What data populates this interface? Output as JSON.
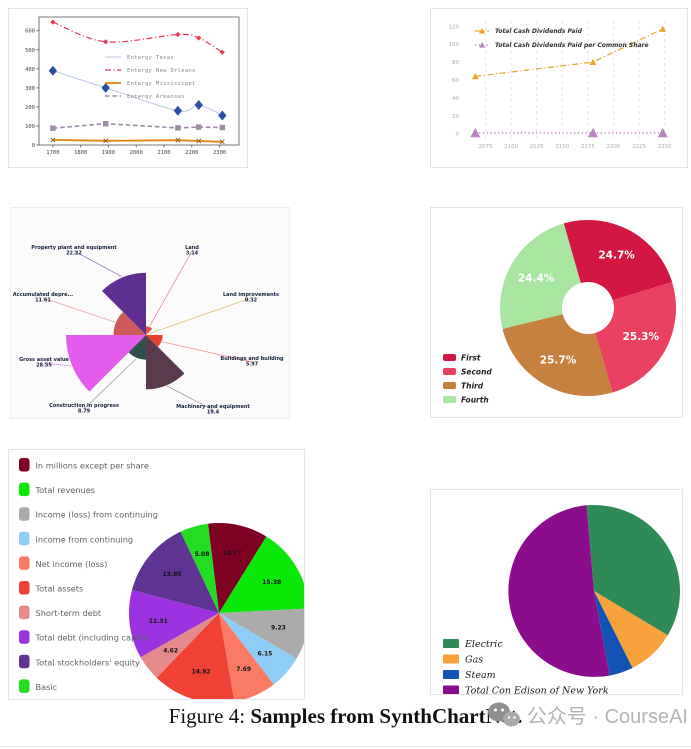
{
  "caption": {
    "prefix": "Figure 4: ",
    "bold": "Samples from SynthChartNet."
  },
  "watermark": {
    "icon": "wechat-icon",
    "text": "公众号 · CourseAI"
  },
  "chart_data": [
    {
      "type": "line",
      "x": [
        1700,
        1890,
        2150,
        2225,
        2310
      ],
      "series": [
        {
          "name": "Entergy Texas",
          "values": [
            390,
            300,
            180,
            210,
            155
          ],
          "color": "#b9c7e6",
          "marker": "diamond",
          "marker_color": "#2d4fa2",
          "style": "solid",
          "smooth": true,
          "width": 1
        },
        {
          "name": "Entergy New Orleans",
          "values": [
            645,
            542,
            580,
            562,
            487
          ],
          "color": "#e8394e",
          "marker": "diamond-small",
          "marker_color": "#e8394e",
          "style": "dashdot",
          "smooth": true,
          "width": 1.2
        },
        {
          "name": "Entergy Mississippi",
          "values": [
            27,
            22,
            25,
            21,
            17
          ],
          "color": "#e2830d",
          "marker": "cross",
          "marker_color": "#8a5a20",
          "style": "solid",
          "smooth": false,
          "width": 1.8
        },
        {
          "name": "Entergy Arkansas",
          "values": [
            88,
            112,
            90,
            94,
            92
          ],
          "color": "#9e8ba4",
          "marker": "square",
          "marker_color": "#9e8ba4",
          "style": "dashed",
          "smooth": false,
          "width": 1.6
        }
      ],
      "xticks": [
        1700,
        1800,
        1900,
        2000,
        2100,
        2200,
        2300
      ],
      "yticks": [
        0,
        100,
        200,
        300,
        400,
        500,
        600
      ],
      "xlim": [
        1650,
        2370
      ],
      "ylim": [
        0,
        672
      ],
      "legend_position": "center-right",
      "grid": "none"
    },
    {
      "type": "line",
      "x": [
        2065,
        2180,
        2248
      ],
      "series": [
        {
          "name": "Total Cash Dividends Paid",
          "values": [
            64,
            80,
            117
          ],
          "color": "#e9a62a",
          "marker": "triangle",
          "marker_color": "#e9a62a",
          "style": "dashdot",
          "smooth": false,
          "width": 1.2,
          "marker_size": 3.4
        },
        {
          "name": "Total Cash Dividends Paid per Common Share",
          "values": [
            0.8,
            0.8,
            0.8
          ],
          "color": "#c77fc9",
          "marker": "triangle",
          "marker_color": "#b784bd",
          "style": "dotted",
          "smooth": false,
          "width": 1.5,
          "marker_size": 5
        }
      ],
      "xticks": [
        2075,
        2100,
        2125,
        2150,
        2175,
        2200,
        2225,
        2250
      ],
      "yticks": [
        0,
        20,
        40,
        60,
        80,
        100,
        120
      ],
      "xlim": [
        2053,
        2262
      ],
      "ylim": [
        -6,
        126
      ],
      "legend_position": "top-left",
      "grid": "vertical-dashed"
    },
    {
      "type": "rose",
      "categories": [
        "Property plant and equipment",
        "Accumulated depre...",
        "Gross asset value",
        "Construction in progress",
        "Machinery and equipment",
        "Buildings and building",
        "Land improvements",
        "Land"
      ],
      "values": [
        22.22,
        11.61,
        28.55,
        8.79,
        19.4,
        5.97,
        0.32,
        3.14
      ],
      "colors": [
        "#5e2f91",
        "#cd5a58",
        "#e45ced",
        "#2f4f4f",
        "#5a3a4c",
        "#e8402e",
        "#e3c567",
        "#e45340"
      ],
      "leader_colors": [
        "#8d6bbf",
        "#ef9a9a",
        "#ee82ee",
        "#86a49e",
        "#9e7b8f",
        "#f08080",
        "#e0c06a",
        "#f08080"
      ]
    },
    {
      "type": "donut",
      "labels": [
        "First",
        "Second",
        "Third",
        "Fourth"
      ],
      "values": [
        24.7,
        25.3,
        25.7,
        24.4
      ],
      "value_labels": [
        "24.7%",
        "25.3%",
        "25.7%",
        "24.4%"
      ],
      "colors": [
        "#d21742",
        "#e84061",
        "#c6803f",
        "#a7e5a1"
      ],
      "start_deg": 106,
      "legend_position": "bottom-left"
    },
    {
      "type": "pie",
      "labels": [
        "In millions except per share",
        "Total revenues",
        "Income (loss) from continuing",
        "Income from continuing",
        "Net income (loss)",
        "Total assets",
        "Short-term debt",
        "Total debt (including capital",
        "Total stockholders' equity",
        "Basic"
      ],
      "values": [
        10.77,
        15.38,
        9.23,
        6.15,
        7.69,
        14.92,
        4.62,
        12.31,
        13.85,
        5.08
      ],
      "value_labels": [
        "10.77",
        "15.38",
        "9.23",
        "6.15",
        "7.69",
        "14.92",
        "4.62",
        "12.31",
        "13.85",
        "5.08"
      ],
      "colors": [
        "#7e0023",
        "#0ae80a",
        "#ababab",
        "#8ecdf5",
        "#fa7a64",
        "#ef4135",
        "#e58a8a",
        "#9b33e0",
        "#5e3392",
        "#23dd23"
      ],
      "start_deg": 97,
      "show_labels": true,
      "legend_position": "left"
    },
    {
      "type": "pie",
      "labels": [
        "Electric",
        "Gas",
        "Steam",
        "Total Con Edison of New York"
      ],
      "values": [
        35,
        9,
        4.5,
        51.5
      ],
      "colors": [
        "#2e8b57",
        "#f9a13a",
        "#1253b5",
        "#8c0d8c"
      ],
      "start_deg": 95,
      "show_labels": false,
      "legend_position": "bottom-left"
    }
  ]
}
